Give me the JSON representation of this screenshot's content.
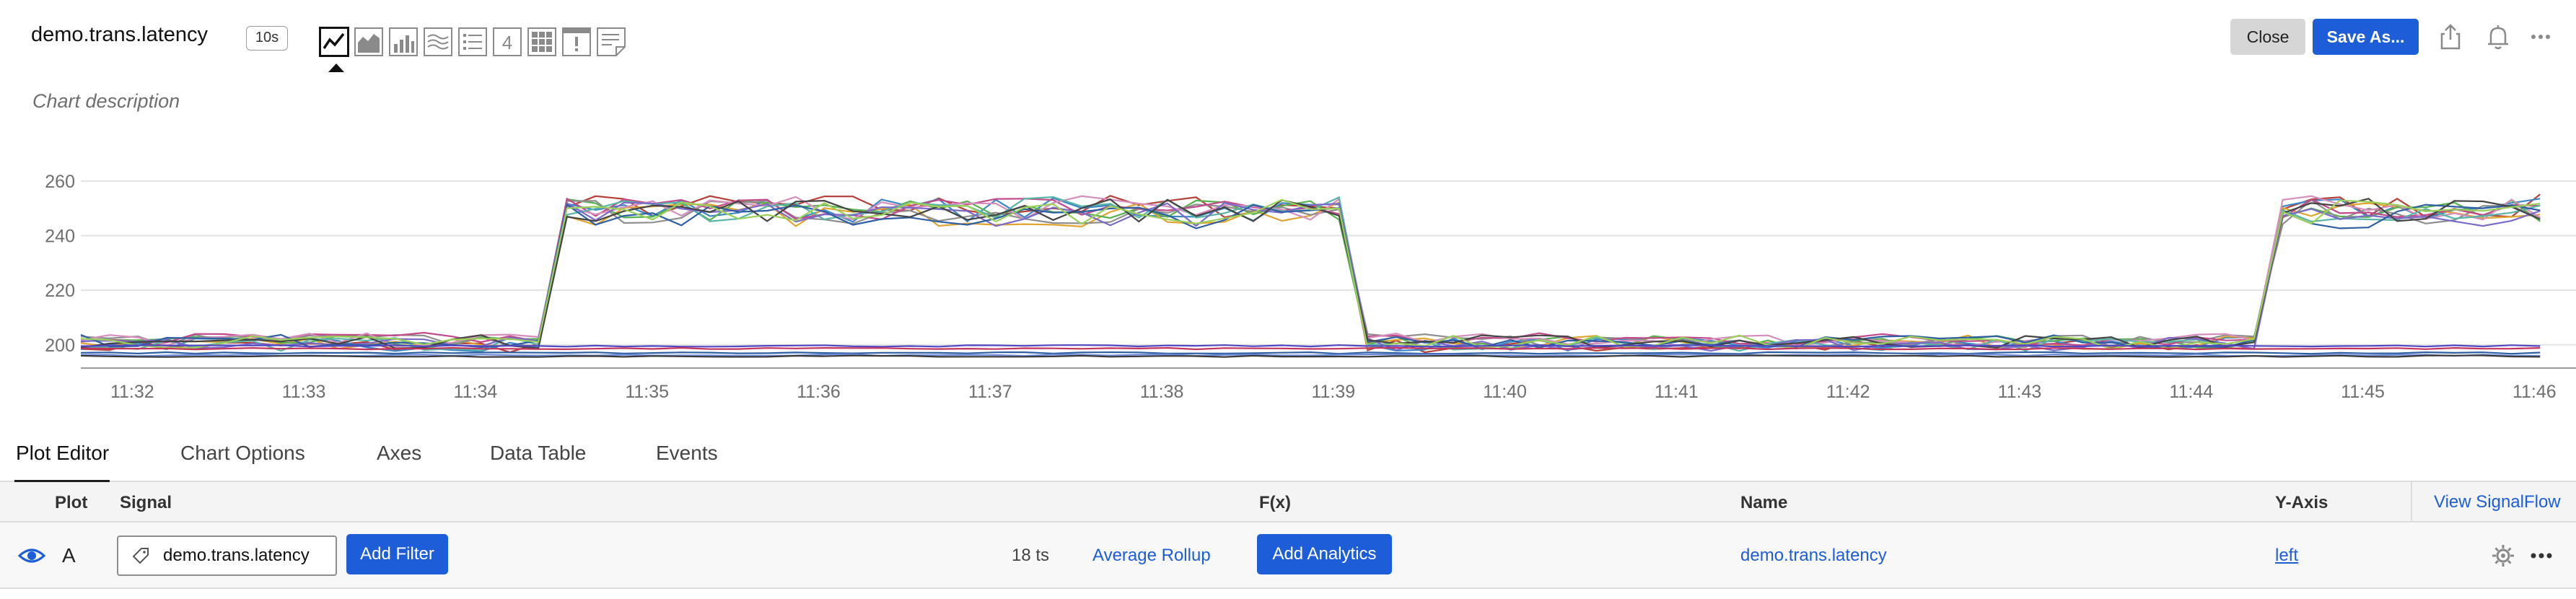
{
  "header": {
    "title": "demo.trans.latency",
    "resolution": "10s",
    "description": "Chart description",
    "close_label": "Close",
    "save_label": "Save As...",
    "viz_types": [
      {
        "icon": "line-chart-icon",
        "active": true
      },
      {
        "icon": "area-chart-icon"
      },
      {
        "icon": "column-chart-icon"
      },
      {
        "icon": "histogram-chart-icon"
      },
      {
        "icon": "list-chart-icon"
      },
      {
        "icon": "single-value-icon",
        "text": "4"
      },
      {
        "icon": "heatmap-icon"
      },
      {
        "icon": "event-feed-icon"
      },
      {
        "icon": "text-note-icon"
      }
    ],
    "right_icons": [
      "share-icon",
      "bell-icon",
      "more-icon"
    ]
  },
  "chart_data": {
    "type": "line",
    "ylim": [
      192,
      265
    ],
    "yticks": [
      200,
      220,
      240,
      260
    ],
    "x_ticks": [
      "11:32",
      "11:33",
      "11:34",
      "11:35",
      "11:36",
      "11:37",
      "11:38",
      "11:39",
      "11:40",
      "11:41",
      "11:42",
      "11:43",
      "11:44",
      "11:45",
      "11:46"
    ],
    "x_range_minutes": [
      31.7,
      46.15
    ],
    "high_periods": [
      [
        34.45,
        39.15
      ],
      [
        44.45,
        46.15
      ]
    ],
    "grid": true,
    "series_colors": [
      "#b5413a",
      "#3b87c6",
      "#e0a431",
      "#59b150",
      "#8e8e8e",
      "#c24a8b",
      "#d68fbd",
      "#58b5a6",
      "#7b6ac9",
      "#2f5fa3",
      "#444444",
      "#9ad05a"
    ],
    "baseline_colors": [
      "#5348c4",
      "#c4345c",
      "#2f5fa3",
      "#6e8bd9",
      "#3a3a3a"
    ],
    "series_count": 18
  },
  "tabs": [
    {
      "label": "Plot Editor",
      "active": true
    },
    {
      "label": "Chart Options"
    },
    {
      "label": "Axes"
    },
    {
      "label": "Data Table"
    },
    {
      "label": "Events"
    }
  ],
  "table": {
    "headers": {
      "plot": "Plot",
      "signal": "Signal",
      "fx": "F(x)",
      "name": "Name",
      "yaxis": "Y-Axis"
    },
    "view_signalflow": "View SignalFlow",
    "rows": [
      {
        "letter": "A",
        "signal": "demo.trans.latency",
        "add_filter": "Add Filter",
        "ts_count": "18 ts",
        "rollup": "Average Rollup",
        "add_analytics": "Add Analytics",
        "name": "demo.trans.latency",
        "yaxis": "left"
      }
    ]
  }
}
